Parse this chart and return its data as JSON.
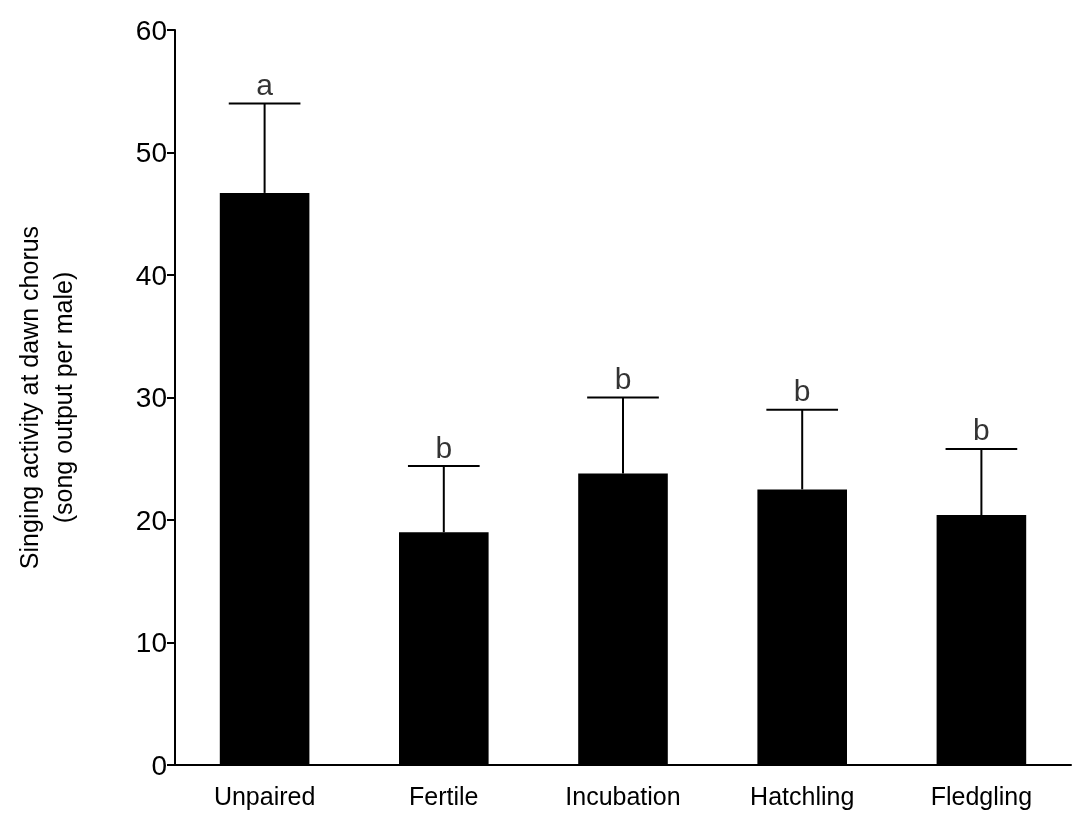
{
  "chart_data": {
    "type": "bar",
    "ylabel": "Singing activity at dawn chorus\n(song output per male)",
    "categories": [
      "Unpaired",
      "Fertile",
      "Incubation",
      "Hatchling",
      "Fledgling"
    ],
    "values": [
      46.7,
      19.0,
      23.8,
      22.5,
      20.4
    ],
    "color": "#000000",
    "errors": [
      [
        46.7,
        54.0
      ],
      [
        19.0,
        24.4
      ],
      [
        23.8,
        30.0
      ],
      [
        22.5,
        29.0
      ],
      [
        20.4,
        25.8
      ]
    ],
    "annotations": [
      {
        "text": "a",
        "x": "Unpaired",
        "y": 54.0
      },
      {
        "text": "b",
        "x": "Fertile",
        "y": 24.4
      },
      {
        "text": "b",
        "x": "Incubation",
        "y": 30.0
      },
      {
        "text": "b",
        "x": "Hatchling",
        "y": 29.0
      },
      {
        "text": "b",
        "x": "Fledgling",
        "y": 25.8
      }
    ],
    "ylim": [
      0,
      60
    ],
    "yticks": [
      0,
      10,
      20,
      30,
      40,
      50,
      60
    ],
    "grid": false
  }
}
